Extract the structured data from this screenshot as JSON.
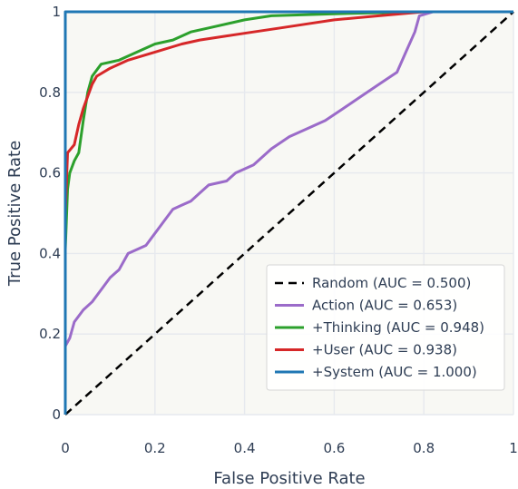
{
  "chart_data": {
    "type": "line",
    "title": "",
    "xlabel": "False Positive Rate",
    "ylabel": "True Positive Rate",
    "xlim": [
      0,
      1
    ],
    "ylim": [
      0,
      1
    ],
    "grid": true,
    "legend_position": "bottom-right",
    "x_ticks": [
      "0",
      "0.2",
      "0.4",
      "0.6",
      "0.8",
      "1"
    ],
    "y_ticks": [
      "0",
      "0.2",
      "0.4",
      "0.6",
      "0.8",
      "1"
    ],
    "series": [
      {
        "name": "Random (AUC = 0.500)",
        "color": "#000000",
        "dash": true,
        "points": [
          [
            0,
            0
          ],
          [
            1,
            1
          ]
        ]
      },
      {
        "name": "Action (AUC = 0.653)",
        "color": "#9b6bc9",
        "points": [
          [
            0,
            0
          ],
          [
            0,
            0.17
          ],
          [
            0.01,
            0.19
          ],
          [
            0.02,
            0.23
          ],
          [
            0.04,
            0.26
          ],
          [
            0.06,
            0.28
          ],
          [
            0.08,
            0.31
          ],
          [
            0.1,
            0.34
          ],
          [
            0.12,
            0.36
          ],
          [
            0.14,
            0.4
          ],
          [
            0.16,
            0.41
          ],
          [
            0.18,
            0.42
          ],
          [
            0.2,
            0.45
          ],
          [
            0.22,
            0.48
          ],
          [
            0.24,
            0.51
          ],
          [
            0.26,
            0.52
          ],
          [
            0.28,
            0.53
          ],
          [
            0.3,
            0.55
          ],
          [
            0.32,
            0.57
          ],
          [
            0.36,
            0.58
          ],
          [
            0.38,
            0.6
          ],
          [
            0.42,
            0.62
          ],
          [
            0.46,
            0.66
          ],
          [
            0.5,
            0.69
          ],
          [
            0.54,
            0.71
          ],
          [
            0.58,
            0.73
          ],
          [
            0.62,
            0.76
          ],
          [
            0.66,
            0.79
          ],
          [
            0.7,
            0.82
          ],
          [
            0.74,
            0.85
          ],
          [
            0.76,
            0.9
          ],
          [
            0.78,
            0.95
          ],
          [
            0.79,
            0.99
          ],
          [
            0.82,
            1.0
          ],
          [
            1,
            1
          ]
        ]
      },
      {
        "name": "+Thinking (AUC = 0.948)",
        "color": "#2ca02c",
        "points": [
          [
            0,
            0
          ],
          [
            0,
            0.41
          ],
          [
            0.005,
            0.56
          ],
          [
            0.01,
            0.6
          ],
          [
            0.02,
            0.63
          ],
          [
            0.03,
            0.65
          ],
          [
            0.04,
            0.73
          ],
          [
            0.05,
            0.8
          ],
          [
            0.06,
            0.84
          ],
          [
            0.08,
            0.87
          ],
          [
            0.12,
            0.88
          ],
          [
            0.16,
            0.9
          ],
          [
            0.2,
            0.92
          ],
          [
            0.24,
            0.93
          ],
          [
            0.28,
            0.95
          ],
          [
            0.32,
            0.96
          ],
          [
            0.4,
            0.98
          ],
          [
            0.46,
            0.99
          ],
          [
            0.6,
            0.995
          ],
          [
            0.8,
            1.0
          ],
          [
            1,
            1
          ]
        ]
      },
      {
        "name": "+User (AUC = 0.938)",
        "color": "#d62728",
        "points": [
          [
            0,
            0
          ],
          [
            0,
            0.5
          ],
          [
            0.005,
            0.65
          ],
          [
            0.02,
            0.67
          ],
          [
            0.03,
            0.72
          ],
          [
            0.04,
            0.76
          ],
          [
            0.05,
            0.79
          ],
          [
            0.06,
            0.82
          ],
          [
            0.07,
            0.84
          ],
          [
            0.1,
            0.86
          ],
          [
            0.14,
            0.88
          ],
          [
            0.2,
            0.9
          ],
          [
            0.26,
            0.92
          ],
          [
            0.3,
            0.93
          ],
          [
            0.36,
            0.94
          ],
          [
            0.42,
            0.95
          ],
          [
            0.48,
            0.96
          ],
          [
            0.54,
            0.97
          ],
          [
            0.6,
            0.98
          ],
          [
            0.7,
            0.99
          ],
          [
            0.8,
            1.0
          ],
          [
            1,
            1
          ]
        ]
      },
      {
        "name": "+System (AUC = 1.000)",
        "color": "#1f77b4",
        "points": [
          [
            0,
            0
          ],
          [
            0,
            1
          ],
          [
            1,
            1
          ]
        ]
      }
    ]
  }
}
